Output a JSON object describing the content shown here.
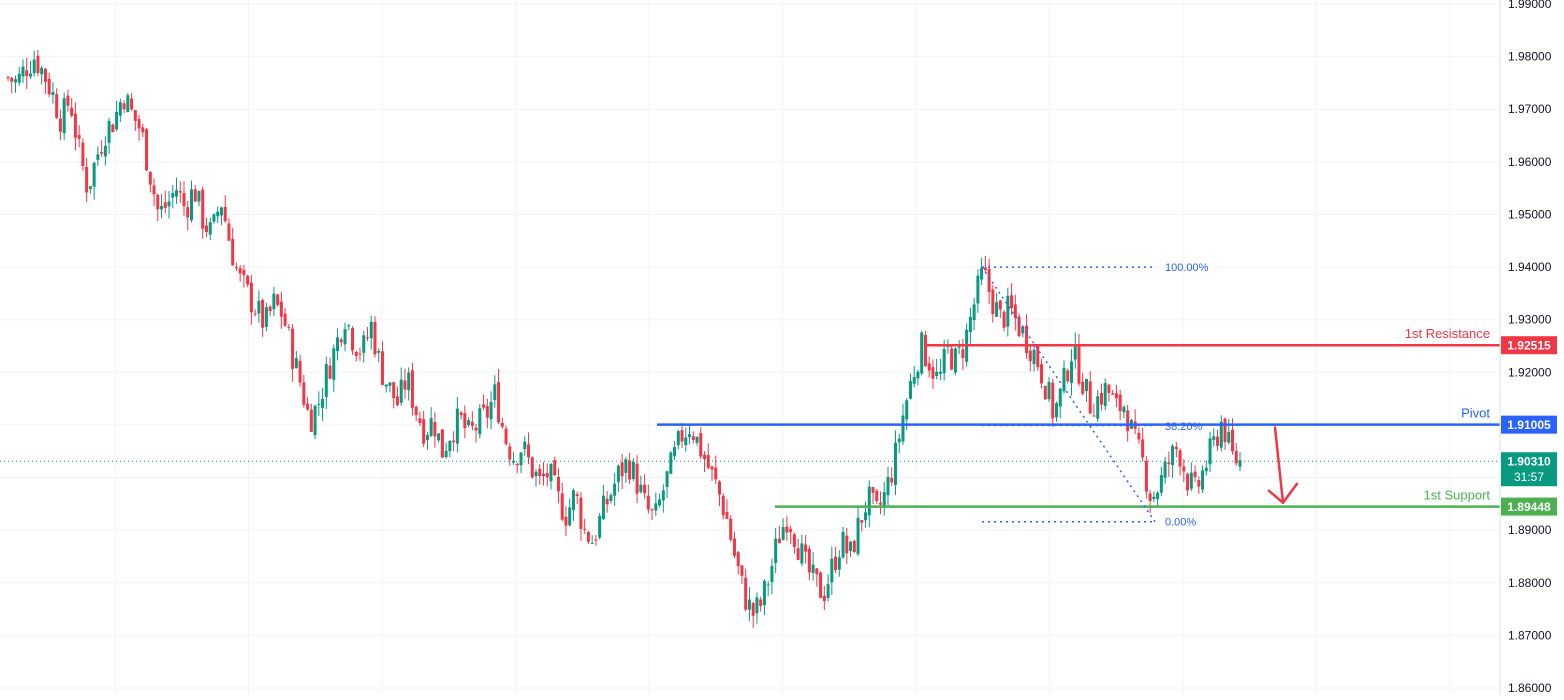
{
  "chart_data": {
    "type": "candlestick",
    "y_axis": {
      "side": "right",
      "range": [
        1.86,
        1.99
      ],
      "ticks": [
        "1.99000",
        "1.98000",
        "1.97000",
        "1.96000",
        "1.95000",
        "1.94000",
        "1.93000",
        "1.92000",
        "1.91000",
        "1.90000",
        "1.89000",
        "1.88000",
        "1.87000",
        "1.86000"
      ]
    },
    "grid": true,
    "colors": {
      "up": "#089981",
      "down": "#f23645",
      "resistance": "#f23645",
      "pivot": "#2962ff",
      "support": "#4caf50",
      "fib": "#2962ff",
      "grid": "#f0f3fa",
      "axis_text": "#131722"
    },
    "levels": [
      {
        "id": "resistance",
        "label": "1st Resistance",
        "value": 1.92515,
        "price_label": "1.92515"
      },
      {
        "id": "pivot",
        "label": "Pivot",
        "value": 1.91005,
        "price_label": "1.91005"
      },
      {
        "id": "support",
        "label": "1st Support",
        "value": 1.89448,
        "price_label": "1.89448"
      }
    ],
    "current_price": {
      "value": 1.9031,
      "label": "1.90310",
      "countdown": "31:57"
    },
    "fibonacci": [
      {
        "label": "100.00%",
        "value": 1.94
      },
      {
        "label": "38.20%",
        "value": 1.9098
      },
      {
        "label": "0.00%",
        "value": 1.8916
      }
    ],
    "arrow": {
      "direction": "down",
      "from": 1.9095,
      "to": 1.8952
    },
    "close_path": [
      1.976,
      1.975,
      1.978,
      1.98,
      1.977,
      1.973,
      1.968,
      1.972,
      1.962,
      1.955,
      1.961,
      1.966,
      1.968,
      1.973,
      1.969,
      1.966,
      1.958,
      1.95,
      1.952,
      1.955,
      1.951,
      1.955,
      1.949,
      1.946,
      1.953,
      1.945,
      1.938,
      1.935,
      1.932,
      1.929,
      1.933,
      1.931,
      1.924,
      1.918,
      1.911,
      1.914,
      1.92,
      1.925,
      1.931,
      1.926,
      1.924,
      1.929,
      1.921,
      1.917,
      1.914,
      1.919,
      1.913,
      1.909,
      1.911,
      1.905,
      1.909,
      1.911,
      1.908,
      1.91,
      1.912,
      1.916,
      1.908,
      1.904,
      1.906,
      1.902,
      1.899,
      1.901,
      1.896,
      1.893,
      1.897,
      1.89,
      1.888,
      1.893,
      1.897,
      1.901,
      1.903,
      1.899,
      1.894,
      1.892,
      1.898,
      1.903,
      1.908,
      1.91,
      1.906,
      1.902,
      1.898,
      1.893,
      1.885,
      1.878,
      1.874,
      1.876,
      1.882,
      1.889,
      1.893,
      1.888,
      1.883,
      1.88,
      1.878,
      1.883,
      1.888,
      1.885,
      1.891,
      1.896,
      1.893,
      1.897,
      1.903,
      1.912,
      1.919,
      1.925,
      1.922,
      1.918,
      1.924,
      1.922,
      1.926,
      1.933,
      1.939,
      1.934,
      1.93,
      1.932,
      1.929,
      1.926,
      1.923,
      1.918,
      1.912,
      1.917,
      1.924,
      1.92,
      1.914,
      1.915,
      1.917,
      1.913,
      1.914,
      1.907,
      1.903,
      1.896,
      1.899,
      1.903,
      1.906,
      1.9,
      1.897,
      1.902,
      1.906,
      1.911,
      1.904,
      1.903
    ]
  }
}
